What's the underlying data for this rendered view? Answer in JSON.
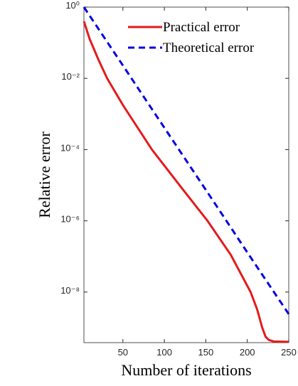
{
  "chart_data": {
    "type": "line",
    "log_y": true,
    "xlabel": "Number of iterations",
    "ylabel": "Relative error",
    "xlim": [
      3,
      250
    ],
    "xticks": [
      50,
      100,
      150,
      200,
      250
    ],
    "ylim": [
      3.8e-10,
      1
    ],
    "yticks": [
      {
        "value": 1,
        "label": "10⁰"
      },
      {
        "value": 0.01,
        "label": "10⁻²"
      },
      {
        "value": 0.0001,
        "label": "10⁻⁴"
      },
      {
        "value": 1e-06,
        "label": "10⁻⁶"
      },
      {
        "value": 1e-08,
        "label": "10⁻⁸"
      }
    ],
    "legend": "upper right",
    "series": [
      {
        "name": "Practical error",
        "color": "#e41a1c",
        "dash": "solid",
        "x": [
          3,
          10,
          20,
          31,
          50,
          85,
          120,
          152,
          180,
          204,
          212,
          218,
          222,
          226,
          232,
          250
        ],
        "values": [
          0.398,
          0.126,
          0.0355,
          0.01,
          0.00178,
          0.0001,
          8.9e-06,
          1e-06,
          1.12e-07,
          1e-08,
          3.2e-09,
          1e-09,
          5.6e-10,
          4.5e-10,
          4.1e-10,
          4e-10
        ]
      },
      {
        "name": "Theoretical error",
        "color": "#0000e0",
        "dash": "dashed",
        "x": [
          3,
          50,
          100,
          150,
          200,
          250
        ],
        "values": [
          1,
          0.023,
          0.00041,
          7.4e-06,
          1.3e-07,
          2.4e-09
        ]
      }
    ]
  }
}
